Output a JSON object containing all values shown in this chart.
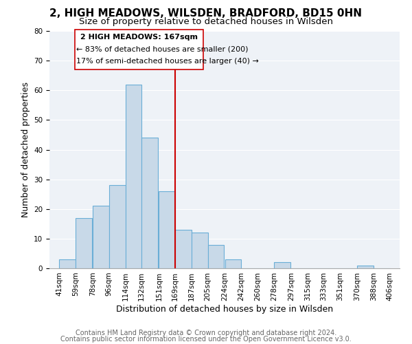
{
  "title": "2, HIGH MEADOWS, WILSDEN, BRADFORD, BD15 0HN",
  "subtitle": "Size of property relative to detached houses in Wilsden",
  "xlabel": "Distribution of detached houses by size in Wilsden",
  "ylabel": "Number of detached properties",
  "bar_left_edges": [
    41,
    59,
    78,
    96,
    114,
    132,
    151,
    169,
    187,
    205,
    224,
    242,
    260,
    278,
    297,
    315,
    333,
    351,
    370,
    388
  ],
  "bar_heights": [
    3,
    17,
    21,
    28,
    62,
    44,
    26,
    13,
    12,
    8,
    3,
    0,
    0,
    2,
    0,
    0,
    0,
    0,
    1,
    0
  ],
  "bin_width": 18,
  "bar_color": "#c8d9e8",
  "bar_edge_color": "#6aaed6",
  "tick_labels": [
    "41sqm",
    "59sqm",
    "78sqm",
    "96sqm",
    "114sqm",
    "132sqm",
    "151sqm",
    "169sqm",
    "187sqm",
    "205sqm",
    "224sqm",
    "242sqm",
    "260sqm",
    "278sqm",
    "297sqm",
    "315sqm",
    "333sqm",
    "351sqm",
    "370sqm",
    "388sqm",
    "406sqm"
  ],
  "vline_x": 169,
  "vline_color": "#cc0000",
  "ylim": [
    0,
    80
  ],
  "yticks": [
    0,
    10,
    20,
    30,
    40,
    50,
    60,
    70,
    80
  ],
  "annotation_title": "2 HIGH MEADOWS: 167sqm",
  "annotation_line1": "← 83% of detached houses are smaller (200)",
  "annotation_line2": "17% of semi-detached houses are larger (40) →",
  "vline_color_ann": "#cc0000",
  "footer_line1": "Contains HM Land Registry data © Crown copyright and database right 2024.",
  "footer_line2": "Contains public sector information licensed under the Open Government Licence v3.0.",
  "background_color": "#ffffff",
  "plot_bg_color": "#eef2f7",
  "grid_color": "#ffffff",
  "title_fontsize": 11,
  "subtitle_fontsize": 9.5,
  "axis_label_fontsize": 9,
  "tick_fontsize": 7.5,
  "annotation_fontsize": 8,
  "footer_fontsize": 7
}
